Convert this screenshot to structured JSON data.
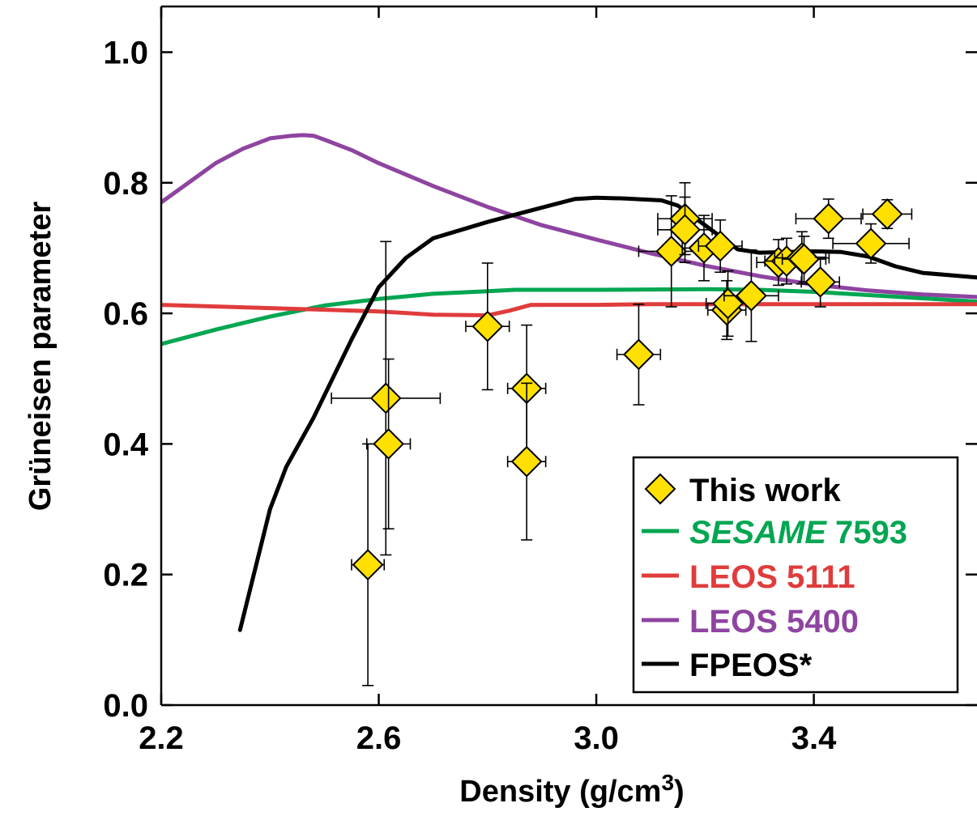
{
  "chart_data": {
    "type": "scatter",
    "xlabel": "Density (g/cm",
    "xlabel_sup": "3",
    "xlabel_close": ")",
    "ylabel": "Grüneisen parameter",
    "xlim": [
      2.2,
      3.7
    ],
    "ylim": [
      0.0,
      1.07
    ],
    "x_ticks": [
      2.2,
      2.6,
      3.0,
      3.4
    ],
    "x_tick_labels": [
      "2.2",
      "2.6",
      "3.0",
      "3.4"
    ],
    "y_ticks": [
      0.0,
      0.2,
      0.4,
      0.6,
      0.8,
      1.0
    ],
    "y_tick_labels": [
      "0.0",
      "0.2",
      "0.4",
      "0.6",
      "0.8",
      "1.0"
    ],
    "grid": false,
    "legend_position": "bottom-right",
    "legend": [
      {
        "label": "This work",
        "marker": "diamond",
        "color": "#FFE000",
        "italic": false,
        "text_color": "#000000"
      },
      {
        "label_italic": "SESAME",
        "label_rest": " 7593",
        "marker": "line",
        "color": "#00A651",
        "text_color": "#00A651"
      },
      {
        "label": "LEOS 5111",
        "marker": "line",
        "color": "#E03C3C",
        "text_color": "#E03C3C"
      },
      {
        "label": "LEOS 5400",
        "marker": "line",
        "color": "#8E44A0",
        "text_color": "#8E44A0"
      },
      {
        "label": "FPEOS*",
        "marker": "line",
        "color": "#000000",
        "text_color": "#000000"
      }
    ],
    "series": [
      {
        "name": "This work",
        "kind": "points",
        "color": "#FFE000",
        "points": [
          {
            "x": 2.58,
            "y": 0.215,
            "xerr": 0.03,
            "yerr_lo": 0.185,
            "yerr_hi": 0.185
          },
          {
            "x": 2.613,
            "y": 0.47,
            "xerr": 0.1,
            "yerr_lo": 0.24,
            "yerr_hi": 0.24
          },
          {
            "x": 2.618,
            "y": 0.4,
            "xerr": 0.04,
            "yerr_lo": 0.13,
            "yerr_hi": 0.13
          },
          {
            "x": 2.8,
            "y": 0.58,
            "xerr": 0.04,
            "yerr_lo": 0.097,
            "yerr_hi": 0.097
          },
          {
            "x": 2.872,
            "y": 0.485,
            "xerr": 0.035,
            "yerr_lo": 0.097,
            "yerr_hi": 0.097
          },
          {
            "x": 2.872,
            "y": 0.373,
            "xerr": 0.035,
            "yerr_lo": 0.12,
            "yerr_hi": 0.12
          },
          {
            "x": 3.078,
            "y": 0.537,
            "xerr": 0.04,
            "yerr_lo": 0.077,
            "yerr_hi": 0.077
          },
          {
            "x": 3.138,
            "y": 0.695,
            "xerr": 0.06,
            "yerr_lo": 0.085,
            "yerr_hi": 0.085
          },
          {
            "x": 3.163,
            "y": 0.745,
            "xerr": 0.05,
            "yerr_lo": 0.055,
            "yerr_hi": 0.055
          },
          {
            "x": 3.163,
            "y": 0.728,
            "xerr": 0.05,
            "yerr_lo": 0.05,
            "yerr_hi": 0.05
          },
          {
            "x": 3.198,
            "y": 0.7,
            "xerr": 0.04,
            "yerr_lo": 0.05,
            "yerr_hi": 0.05
          },
          {
            "x": 3.228,
            "y": 0.703,
            "xerr": 0.04,
            "yerr_lo": 0.04,
            "yerr_hi": 0.04
          },
          {
            "x": 3.24,
            "y": 0.605,
            "xerr": 0.035,
            "yerr_lo": 0.045,
            "yerr_hi": 0.045
          },
          {
            "x": 3.242,
            "y": 0.615,
            "xerr": 0.04,
            "yerr_lo": 0.05,
            "yerr_hi": 0.05
          },
          {
            "x": 3.285,
            "y": 0.627,
            "xerr": 0.05,
            "yerr_lo": 0.07,
            "yerr_hi": 0.07
          },
          {
            "x": 3.335,
            "y": 0.678,
            "xerr": 0.04,
            "yerr_lo": 0.035,
            "yerr_hi": 0.035
          },
          {
            "x": 3.35,
            "y": 0.68,
            "xerr": 0.04,
            "yerr_lo": 0.035,
            "yerr_hi": 0.035
          },
          {
            "x": 3.378,
            "y": 0.685,
            "xerr": 0.05,
            "yerr_lo": 0.04,
            "yerr_hi": 0.04
          },
          {
            "x": 3.382,
            "y": 0.683,
            "xerr": 0.04,
            "yerr_lo": 0.035,
            "yerr_hi": 0.035
          },
          {
            "x": 3.412,
            "y": 0.648,
            "xerr": 0.035,
            "yerr_lo": 0.038,
            "yerr_hi": 0.038
          },
          {
            "x": 3.427,
            "y": 0.745,
            "xerr": 0.06,
            "yerr_lo": 0.03,
            "yerr_hi": 0.03
          },
          {
            "x": 3.505,
            "y": 0.707,
            "xerr": 0.07,
            "yerr_lo": 0.03,
            "yerr_hi": 0.03
          },
          {
            "x": 3.535,
            "y": 0.752,
            "xerr": 0.045,
            "yerr_lo": 0.022,
            "yerr_hi": 0.022
          }
        ]
      },
      {
        "name": "SESAME 7593",
        "kind": "line",
        "color": "#00A651",
        "x": [
          2.2,
          2.3,
          2.4,
          2.5,
          2.6,
          2.7,
          2.8,
          2.85,
          3.0,
          3.2,
          3.3,
          3.4,
          3.5,
          3.6,
          3.7
        ],
        "y": [
          0.553,
          0.575,
          0.595,
          0.612,
          0.622,
          0.63,
          0.634,
          0.636,
          0.636,
          0.637,
          0.636,
          0.633,
          0.628,
          0.623,
          0.618
        ]
      },
      {
        "name": "LEOS 5111",
        "kind": "line",
        "color": "#E03C3C",
        "x": [
          2.2,
          2.4,
          2.6,
          2.7,
          2.8,
          2.84,
          2.88,
          3.0,
          3.1,
          3.3,
          3.5,
          3.7
        ],
        "y": [
          0.613,
          0.608,
          0.603,
          0.598,
          0.597,
          0.604,
          0.613,
          0.613,
          0.614,
          0.614,
          0.614,
          0.614
        ]
      },
      {
        "name": "LEOS 5400",
        "kind": "line",
        "color": "#8E44A0",
        "x": [
          2.2,
          2.25,
          2.3,
          2.35,
          2.4,
          2.44,
          2.46,
          2.48,
          2.5,
          2.55,
          2.6,
          2.7,
          2.8,
          2.9,
          3.0,
          3.1,
          3.2,
          3.3,
          3.4,
          3.5,
          3.6,
          3.7
        ],
        "y": [
          0.77,
          0.8,
          0.83,
          0.852,
          0.868,
          0.872,
          0.873,
          0.872,
          0.866,
          0.85,
          0.83,
          0.795,
          0.763,
          0.735,
          0.713,
          0.692,
          0.673,
          0.657,
          0.644,
          0.635,
          0.629,
          0.625
        ]
      },
      {
        "name": "FPEOS*",
        "kind": "line",
        "color": "#000000",
        "x": [
          2.345,
          2.4,
          2.43,
          2.48,
          2.55,
          2.6,
          2.65,
          2.7,
          2.8,
          2.9,
          2.96,
          3.0,
          3.05,
          3.12,
          3.15,
          3.2,
          3.26,
          3.3,
          3.4,
          3.45,
          3.5,
          3.55,
          3.6,
          3.7
        ],
        "y": [
          0.115,
          0.3,
          0.365,
          0.44,
          0.56,
          0.64,
          0.685,
          0.715,
          0.74,
          0.762,
          0.775,
          0.777,
          0.776,
          0.773,
          0.765,
          0.735,
          0.698,
          0.693,
          0.695,
          0.694,
          0.687,
          0.672,
          0.662,
          0.655
        ]
      }
    ]
  }
}
